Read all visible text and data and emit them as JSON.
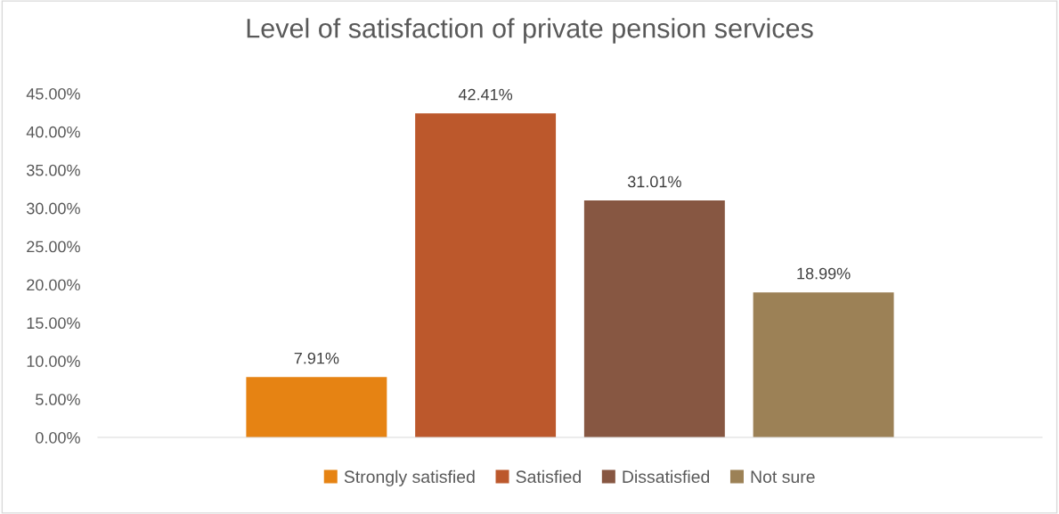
{
  "chart_data": {
    "type": "bar",
    "title": "Level of satisfaction of private pension services",
    "categories": [
      null
    ],
    "series": [
      {
        "name": "Strongly satisfied",
        "color": "#e68313",
        "values": [
          7.91
        ],
        "value_labels": [
          "7.91%"
        ]
      },
      {
        "name": "Satisfied",
        "color": "#bc582c",
        "values": [
          42.41
        ],
        "value_labels": [
          "42.41%"
        ]
      },
      {
        "name": "Dissatisfied",
        "color": "#875742",
        "values": [
          31.01
        ],
        "value_labels": [
          "31.01%"
        ]
      },
      {
        "name": "Not sure",
        "color": "#9c8156",
        "values": [
          18.99
        ],
        "value_labels": [
          "18.99%"
        ]
      }
    ],
    "ylim": [
      0,
      45
    ],
    "yticks": [
      {
        "value": 0,
        "label": "0.00%"
      },
      {
        "value": 5,
        "label": "5.00%"
      },
      {
        "value": 10,
        "label": "10.00%"
      },
      {
        "value": 15,
        "label": "15.00%"
      },
      {
        "value": 20,
        "label": "20.00%"
      },
      {
        "value": 25,
        "label": "25.00%"
      },
      {
        "value": 30,
        "label": "30.00%"
      },
      {
        "value": 35,
        "label": "35.00%"
      },
      {
        "value": 40,
        "label": "40.00%"
      },
      {
        "value": 45,
        "label": "45.00%"
      }
    ],
    "grid": false,
    "legend": "bottom"
  }
}
